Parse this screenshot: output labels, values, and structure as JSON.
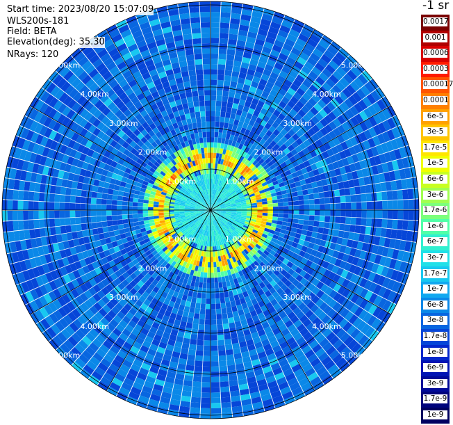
{
  "header": {
    "start_time": "Start time: 2023/08/20 15:07:09",
    "instrument": "WLS200s-181",
    "field": "Field: BETA",
    "elevation": "Elevation(deg): 35.30",
    "nrays": "NRays: 120"
  },
  "colorbar": {
    "unit_label": "-1 sr",
    "levels": [
      {
        "label": "0.0017",
        "color": "#7a0000"
      },
      {
        "label": "0.001",
        "color": "#b00000"
      },
      {
        "label": "0.0006",
        "color": "#d80000"
      },
      {
        "label": "0.0003",
        "color": "#ff1a00"
      },
      {
        "label": "0.00017",
        "color": "#ff5500"
      },
      {
        "label": "0.0001",
        "color": "#ff8000"
      },
      {
        "label": "6e-5",
        "color": "#ffa200"
      },
      {
        "label": "3e-5",
        "color": "#ffc400"
      },
      {
        "label": "1.7e-5",
        "color": "#ffe600"
      },
      {
        "label": "1e-5",
        "color": "#f0ff00"
      },
      {
        "label": "6e-6",
        "color": "#c8ff20"
      },
      {
        "label": "3e-6",
        "color": "#a0ff50"
      },
      {
        "label": "1.7e-6",
        "color": "#7cff7c"
      },
      {
        "label": "1e-6",
        "color": "#50ffa8"
      },
      {
        "label": "6e-7",
        "color": "#30f0d0"
      },
      {
        "label": "3e-7",
        "color": "#20e0e8"
      },
      {
        "label": "1.7e-7",
        "color": "#18c8f0"
      },
      {
        "label": "1e-7",
        "color": "#10a8f0"
      },
      {
        "label": "6e-8",
        "color": "#0a88e8"
      },
      {
        "label": "3e-8",
        "color": "#0866e0"
      },
      {
        "label": "1.7e-8",
        "color": "#0646d8"
      },
      {
        "label": "1e-8",
        "color": "#0428cc"
      },
      {
        "label": "6e-9",
        "color": "#0214b4"
      },
      {
        "label": "3e-9",
        "color": "#010a98"
      },
      {
        "label": "1.7e-9",
        "color": "#00047c"
      },
      {
        "label": "1e-9",
        "color": "#000060"
      }
    ]
  },
  "chart_data": {
    "type": "heatmap",
    "projection": "polar (PPI scan)",
    "field": "BETA",
    "unit": "-1 sr",
    "n_rays": 120,
    "range_rings_km": [
      1,
      2,
      3,
      4,
      5
    ],
    "range_ring_labels": [
      "1.00km",
      "2.00km",
      "3.00km",
      "4.00km",
      "5.00km"
    ],
    "max_range_km": 5.7,
    "scale": "log",
    "value_range": [
      1e-09,
      0.0017
    ],
    "background_level": "3e-8",
    "features": [
      {
        "description": "enhanced backscatter ring",
        "range_km": [
          0.9,
          1.6
        ],
        "peak_level": "6e-5"
      },
      {
        "description": "near-field region",
        "range_km": [
          0,
          0.9
        ],
        "level": "3e-7"
      }
    ]
  }
}
